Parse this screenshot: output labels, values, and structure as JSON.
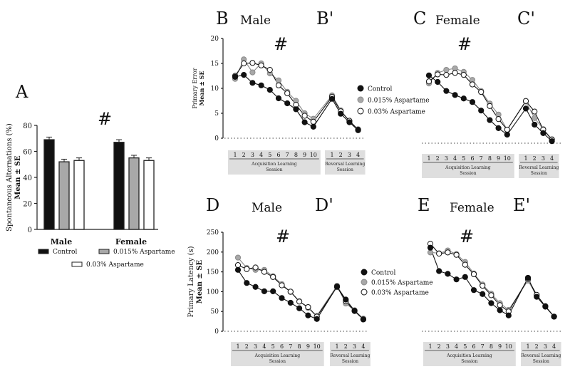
{
  "panel_labels": {
    "A": "A",
    "B": "B",
    "Bp": "B'",
    "C": "C",
    "Cp": "C'",
    "D": "D",
    "Dp": "D'",
    "E": "E",
    "Ep": "E'"
  },
  "sex_labels": {
    "male": "Male",
    "female": "Female"
  },
  "hash": "#",
  "colors": {
    "control": "#111111",
    "low": "#a8a8a8",
    "high": "#ffffff",
    "edge": "#222222"
  },
  "chart_data": [
    {
      "type": "bar",
      "id": "A",
      "ylabel": "Spontaneous Alternations (%)\nMean ± SE",
      "ylabel_line1": "Spontaneous Alternations (%)",
      "ylabel_line2": "Mean ± SE",
      "ylim": [
        0,
        80
      ],
      "yticks": [
        0,
        20,
        40,
        60,
        80
      ],
      "categories": [
        "Male",
        "Female"
      ],
      "series": [
        {
          "name": "Control",
          "values": [
            69,
            67
          ],
          "err": [
            2,
            2
          ]
        },
        {
          "name": "0.015% Aspartame",
          "values": [
            52,
            55
          ],
          "err": [
            2,
            2
          ]
        },
        {
          "name": "0.03% Aspartame",
          "values": [
            53,
            53
          ],
          "err": [
            2,
            2
          ]
        }
      ]
    },
    {
      "type": "line",
      "id": "BB",
      "ylabel_line1": "Primary Error",
      "ylabel_line2": "Mean ± SE",
      "ylim": [
        0,
        20
      ],
      "yticks": [
        0,
        5,
        10,
        15,
        20
      ],
      "acq_sessions": [
        1,
        2,
        3,
        4,
        5,
        6,
        7,
        8,
        9,
        10
      ],
      "rev_sessions": [
        1,
        2,
        3,
        4
      ],
      "session_label_acq": "Acquisition Learning\nSession",
      "session_label_rev": "Reversal Learning\nSession",
      "series": [
        {
          "name": "Control",
          "acq": [
            12.3,
            12.7,
            11.1,
            10.6,
            9.7,
            8.0,
            7.0,
            5.8,
            3.2,
            2.3
          ],
          "rev": [
            7.9,
            4.9,
            3.2,
            1.6
          ]
        },
        {
          "name": "0.015% Aspartame",
          "acq": [
            11.9,
            15.8,
            13.2,
            15.0,
            13.0,
            11.6,
            9.3,
            7.5,
            5.0,
            3.9
          ],
          "rev": [
            8.6,
            5.6,
            3.4,
            1.8
          ]
        },
        {
          "name": "0.03% Aspartame",
          "acq": [
            12.5,
            15.0,
            15.1,
            14.6,
            13.7,
            10.6,
            9.0,
            6.7,
            4.5,
            3.3
          ],
          "rev": [
            8.3,
            5.4,
            3.5,
            1.7
          ]
        }
      ]
    },
    {
      "type": "line",
      "id": "CC",
      "ylim": [
        0,
        20
      ],
      "acq_sessions": [
        1,
        2,
        3,
        4,
        5,
        6,
        7,
        8,
        9,
        10
      ],
      "rev_sessions": [
        1,
        2,
        3,
        4
      ],
      "session_label_acq": "Acquisition Learning\nSession",
      "session_label_rev": "Reversal Learning\nSession",
      "series": [
        {
          "name": "Control",
          "acq": [
            13.5,
            12.2,
            10.4,
            9.6,
            8.9,
            8.2,
            6.5,
            4.6,
            3.0,
            1.7
          ],
          "rev": [
            6.9,
            3.7,
            2.0,
            0.4
          ]
        },
        {
          "name": "0.015% Aspartame",
          "acq": [
            11.9,
            14.0,
            14.6,
            14.9,
            14.2,
            12.6,
            10.4,
            7.9,
            5.7,
            2.7
          ],
          "rev": [
            8.3,
            5.0,
            2.8,
            0.8
          ]
        },
        {
          "name": "0.03% Aspartame",
          "acq": [
            12.3,
            13.7,
            13.6,
            14.0,
            13.6,
            11.7,
            10.2,
            7.4,
            4.8,
            2.7
          ],
          "rev": [
            8.4,
            6.3,
            2.7,
            0.7
          ]
        }
      ]
    },
    {
      "type": "line",
      "id": "DD",
      "ylabel_line1": "Primary Latency (s)",
      "ylabel_line2": "Mean ± SE",
      "ylim": [
        0,
        250
      ],
      "yticks": [
        0,
        50,
        100,
        150,
        200,
        250
      ],
      "acq_sessions": [
        1,
        2,
        3,
        4,
        5,
        6,
        7,
        8,
        9,
        10
      ],
      "rev_sessions": [
        1,
        2,
        3,
        4
      ],
      "session_label_acq": "Acquisition Learning\nSession",
      "session_label_rev": "Reversal Learning\nSession",
      "series": [
        {
          "name": "Control",
          "acq": [
            155,
            122,
            112,
            101,
            101,
            84,
            72,
            58,
            40,
            31
          ],
          "rev": [
            113,
            80,
            52,
            30
          ]
        },
        {
          "name": "0.015% Aspartame",
          "acq": [
            186,
            160,
            155,
            155,
            139,
            119,
            99,
            76,
            59,
            39
          ],
          "rev": [
            115,
            70,
            53,
            32
          ]
        },
        {
          "name": "0.03% Aspartame",
          "acq": [
            167,
            157,
            161,
            150,
            137,
            116,
            100,
            75,
            61,
            37
          ],
          "rev": [
            112,
            76,
            51,
            30
          ]
        }
      ]
    },
    {
      "type": "line",
      "id": "EE",
      "ylim": [
        0,
        250
      ],
      "acq_sessions": [
        1,
        2,
        3,
        4,
        5,
        6,
        7,
        8,
        9,
        10
      ],
      "rev_sessions": [
        1,
        2,
        3,
        4
      ],
      "session_label_acq": "Acquisition Learning\nSession",
      "session_label_rev": "Reversal Learning\nSession",
      "series": [
        {
          "name": "Control",
          "acq": [
            211,
            152,
            145,
            131,
            137,
            104,
            94,
            71,
            53,
            40
          ],
          "rev": [
            135,
            87,
            62,
            37
          ]
        },
        {
          "name": "0.015% Aspartame",
          "acq": [
            199,
            197,
            204,
            195,
            175,
            146,
            118,
            95,
            71,
            54
          ],
          "rev": [
            128,
            90,
            64,
            37
          ]
        },
        {
          "name": "0.03% Aspartame",
          "acq": [
            221,
            196,
            199,
            193,
            168,
            144,
            115,
            91,
            66,
            50
          ],
          "rev": [
            132,
            92,
            63,
            37
          ]
        }
      ]
    }
  ],
  "legend_top": [
    "Control",
    "0.015% Aspartame",
    "0.03% Aspartame"
  ],
  "legend_mid": [
    "Control",
    "0.015% Aspartame",
    "0.03% Aspartame"
  ],
  "legend_bar": [
    "Control",
    "0.015% Aspartame",
    "0.03% Aspartame"
  ]
}
